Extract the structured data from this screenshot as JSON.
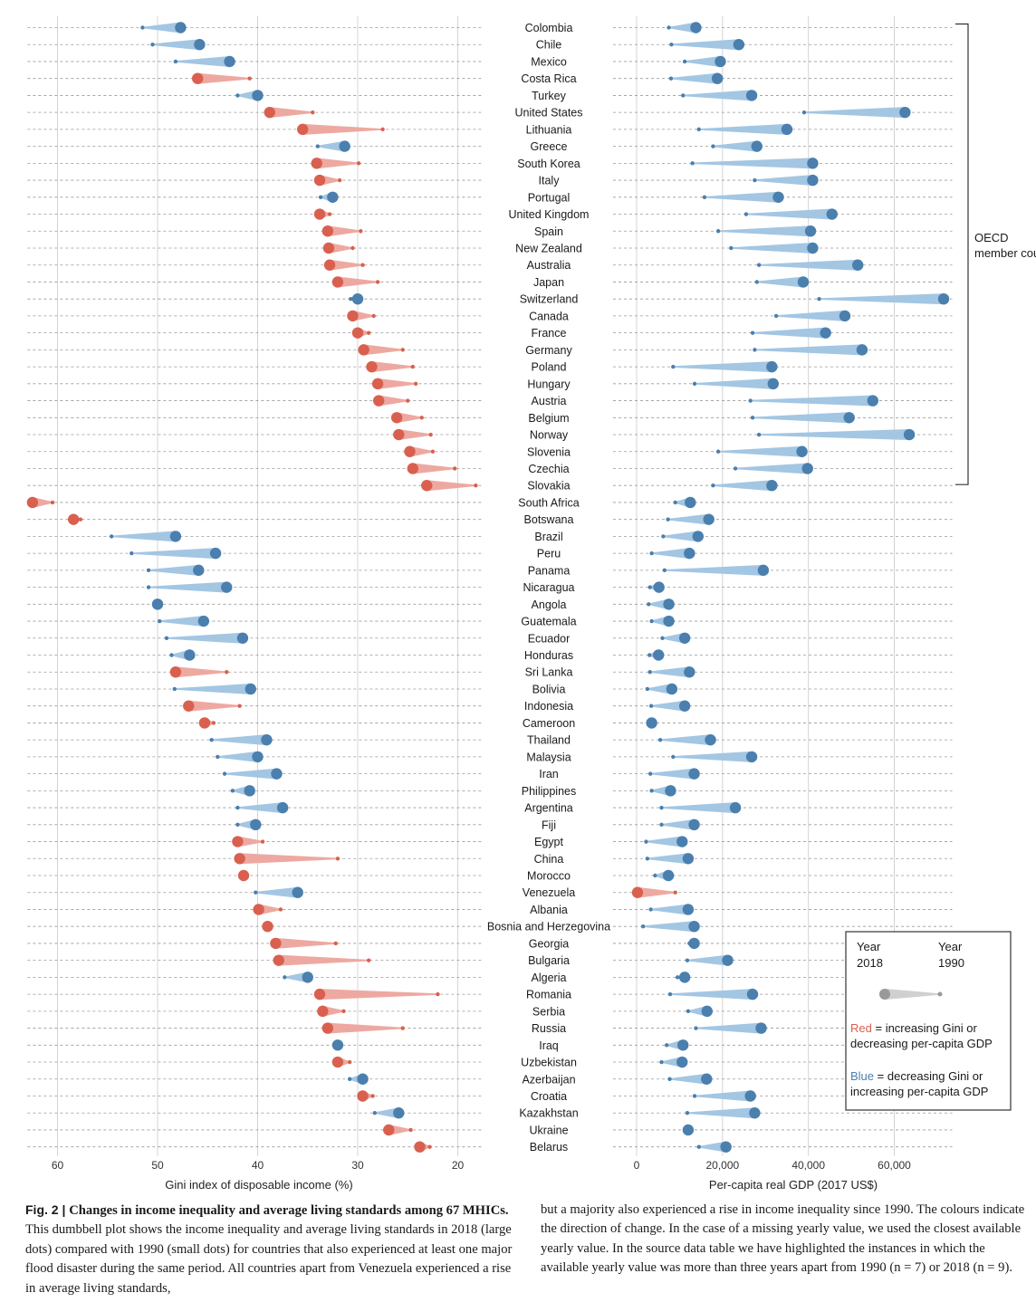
{
  "chart_data": {
    "type": "dumbbell",
    "caption": {
      "label": "Fig. 2 | ",
      "title": "Changes in income inequality and average living standards among 67 MHICs.",
      "text_col1": "This dumbbell plot shows the income inequality and average living standards in 2018 (large dots) compared with 1990 (small dots) for countries that also experienced at least one major flood disaster during the same period. All countries apart from Venezuela experienced a rise in average living standards,",
      "text_col2": "but a majority also experienced a rise in income inequality since 1990. The colours indicate the direction of change. In the case of a missing yearly value, we used the closest available yearly value. In the source data table we have highlighted the instances in which the available yearly value was more than three years apart from 1990 (n = 7) or 2018 (n = 9)."
    },
    "left_panel": {
      "xlabel": "Gini index of disposable income (%)",
      "xlim": [
        63,
        18
      ],
      "ticks": [
        60,
        50,
        40,
        30,
        20
      ]
    },
    "right_panel": {
      "xlabel": "Per-capita real GDP (2017 US$)",
      "xlim": [
        -5000,
        76000
      ],
      "ticks": [
        0,
        20000,
        40000,
        60000
      ],
      "tick_labels": [
        "0",
        "20,000",
        "40,000",
        "60,000"
      ]
    },
    "group_label": "OECD member countries",
    "group_range": [
      "Colombia",
      "Slovakia"
    ],
    "legend": {
      "year_2018": "Year 2018",
      "year_1990": "Year 1990",
      "red_word": "Red",
      "red_text": " = increasing Gini or decreasing per-capita GDP",
      "blue_word": "Blue",
      "blue_text": " = decreasing Gini or increasing per-capita GDP"
    },
    "colors": {
      "red": "#d9604f",
      "blue": "#4a7fae",
      "red_light": "#eda9a1",
      "blue_light": "#a3c6e3",
      "gray": "#999999"
    },
    "countries": [
      {
        "name": "Colombia",
        "gini_1990": 51.5,
        "gini_2018": 47.7,
        "gdp_1990": 7500,
        "gdp_2018": 13800
      },
      {
        "name": "Chile",
        "gini_1990": 50.5,
        "gini_2018": 45.8,
        "gdp_1990": 8100,
        "gdp_2018": 23800
      },
      {
        "name": "Mexico",
        "gini_1990": 48.2,
        "gini_2018": 42.8,
        "gdp_1990": 11200,
        "gdp_2018": 19500
      },
      {
        "name": "Costa Rica",
        "gini_1990": 40.8,
        "gini_2018": 46.0,
        "gdp_1990": 8000,
        "gdp_2018": 18800
      },
      {
        "name": "Turkey",
        "gini_1990": 42.0,
        "gini_2018": 40.0,
        "gdp_1990": 10800,
        "gdp_2018": 26800
      },
      {
        "name": "United States",
        "gini_1990": 34.5,
        "gini_2018": 38.8,
        "gdp_1990": 39000,
        "gdp_2018": 62500
      },
      {
        "name": "Lithuania",
        "gini_1990": 27.5,
        "gini_2018": 35.5,
        "gdp_1990": 14500,
        "gdp_2018": 35000
      },
      {
        "name": "Greece",
        "gini_1990": 34.0,
        "gini_2018": 31.3,
        "gdp_1990": 17800,
        "gdp_2018": 28000
      },
      {
        "name": "South Korea",
        "gini_1990": 29.9,
        "gini_2018": 34.1,
        "gdp_1990": 13000,
        "gdp_2018": 41000
      },
      {
        "name": "Italy",
        "gini_1990": 31.8,
        "gini_2018": 33.8,
        "gdp_1990": 27500,
        "gdp_2018": 41000
      },
      {
        "name": "Portugal",
        "gini_1990": 33.7,
        "gini_2018": 32.5,
        "gdp_1990": 15800,
        "gdp_2018": 33000
      },
      {
        "name": "United Kingdom",
        "gini_1990": 32.8,
        "gini_2018": 33.8,
        "gdp_1990": 25500,
        "gdp_2018": 45500
      },
      {
        "name": "Spain",
        "gini_1990": 29.7,
        "gini_2018": 33.0,
        "gdp_1990": 19000,
        "gdp_2018": 40500
      },
      {
        "name": "New Zealand",
        "gini_1990": 30.5,
        "gini_2018": 32.9,
        "gdp_1990": 22000,
        "gdp_2018": 41000
      },
      {
        "name": "Australia",
        "gini_1990": 29.5,
        "gini_2018": 32.8,
        "gdp_1990": 28500,
        "gdp_2018": 51500
      },
      {
        "name": "Japan",
        "gini_1990": 28.0,
        "gini_2018": 32.0,
        "gdp_1990": 28000,
        "gdp_2018": 38800
      },
      {
        "name": "Switzerland",
        "gini_1990": 30.7,
        "gini_2018": 30.0,
        "gdp_1990": 42500,
        "gdp_2018": 71500
      },
      {
        "name": "Canada",
        "gini_1990": 28.4,
        "gini_2018": 30.5,
        "gdp_1990": 32500,
        "gdp_2018": 48500
      },
      {
        "name": "France",
        "gini_1990": 28.9,
        "gini_2018": 30.0,
        "gdp_1990": 27000,
        "gdp_2018": 44000
      },
      {
        "name": "Germany",
        "gini_1990": 25.5,
        "gini_2018": 29.4,
        "gdp_1990": 27500,
        "gdp_2018": 52500
      },
      {
        "name": "Poland",
        "gini_1990": 24.5,
        "gini_2018": 28.6,
        "gdp_1990": 8500,
        "gdp_2018": 31500
      },
      {
        "name": "Hungary",
        "gini_1990": 24.2,
        "gini_2018": 28.0,
        "gdp_1990": 13500,
        "gdp_2018": 31800
      },
      {
        "name": "Austria",
        "gini_1990": 25.0,
        "gini_2018": 27.9,
        "gdp_1990": 26500,
        "gdp_2018": 55000
      },
      {
        "name": "Belgium",
        "gini_1990": 23.6,
        "gini_2018": 26.1,
        "gdp_1990": 27000,
        "gdp_2018": 49500
      },
      {
        "name": "Norway",
        "gini_1990": 22.7,
        "gini_2018": 25.9,
        "gdp_1990": 28500,
        "gdp_2018": 63500
      },
      {
        "name": "Slovenia",
        "gini_1990": 22.5,
        "gini_2018": 24.8,
        "gdp_1990": 19000,
        "gdp_2018": 38500
      },
      {
        "name": "Czechia",
        "gini_1990": 20.3,
        "gini_2018": 24.5,
        "gdp_1990": 23000,
        "gdp_2018": 39800
      },
      {
        "name": "Slovakia",
        "gini_1990": 18.2,
        "gini_2018": 23.1,
        "gdp_1990": 17800,
        "gdp_2018": 31500
      },
      {
        "name": "South Africa",
        "gini_1990": 60.5,
        "gini_2018": 62.5,
        "gdp_1990": 9000,
        "gdp_2018": 12500
      },
      {
        "name": "Botswana",
        "gini_1990": 57.7,
        "gini_2018": 58.4,
        "gdp_1990": 7300,
        "gdp_2018": 16800
      },
      {
        "name": "Brazil",
        "gini_1990": 54.6,
        "gini_2018": 48.2,
        "gdp_1990": 6200,
        "gdp_2018": 14300
      },
      {
        "name": "Peru",
        "gini_1990": 52.6,
        "gini_2018": 44.2,
        "gdp_1990": 3500,
        "gdp_2018": 12300
      },
      {
        "name": "Panama",
        "gini_1990": 50.9,
        "gini_2018": 45.9,
        "gdp_1990": 6500,
        "gdp_2018": 29500
      },
      {
        "name": "Nicaragua",
        "gini_1990": 50.9,
        "gini_2018": 43.1,
        "gdp_1990": 3100,
        "gdp_2018": 5200
      },
      {
        "name": "Angola",
        "gini_1990": 50.2,
        "gini_2018": 50.0,
        "gdp_1990": 2800,
        "gdp_2018": 7500
      },
      {
        "name": "Guatemala",
        "gini_1990": 49.8,
        "gini_2018": 45.4,
        "gdp_1990": 3500,
        "gdp_2018": 7500
      },
      {
        "name": "Ecuador",
        "gini_1990": 49.1,
        "gini_2018": 41.5,
        "gdp_1990": 6000,
        "gdp_2018": 11200
      },
      {
        "name": "Honduras",
        "gini_1990": 48.6,
        "gini_2018": 46.8,
        "gdp_1990": 3000,
        "gdp_2018": 5100
      },
      {
        "name": "Sri Lanka",
        "gini_1990": 43.1,
        "gini_2018": 48.2,
        "gdp_1990": 3100,
        "gdp_2018": 12300
      },
      {
        "name": "Bolivia",
        "gini_1990": 48.3,
        "gini_2018": 40.7,
        "gdp_1990": 2500,
        "gdp_2018": 8200
      },
      {
        "name": "Indonesia",
        "gini_1990": 41.8,
        "gini_2018": 46.9,
        "gdp_1990": 3400,
        "gdp_2018": 11200
      },
      {
        "name": "Cameroon",
        "gini_1990": 44.4,
        "gini_2018": 45.3,
        "gdp_1990": 3200,
        "gdp_2018": 3500
      },
      {
        "name": "Thailand",
        "gini_1990": 44.6,
        "gini_2018": 39.1,
        "gdp_1990": 5500,
        "gdp_2018": 17200
      },
      {
        "name": "Malaysia",
        "gini_1990": 44.0,
        "gini_2018": 40.0,
        "gdp_1990": 8500,
        "gdp_2018": 26800
      },
      {
        "name": "Iran",
        "gini_1990": 43.3,
        "gini_2018": 38.1,
        "gdp_1990": 3200,
        "gdp_2018": 13400
      },
      {
        "name": "Philippines",
        "gini_1990": 42.5,
        "gini_2018": 40.8,
        "gdp_1990": 3500,
        "gdp_2018": 7900
      },
      {
        "name": "Argentina",
        "gini_1990": 42.0,
        "gini_2018": 37.5,
        "gdp_1990": 5800,
        "gdp_2018": 23000
      },
      {
        "name": "Fiji",
        "gini_1990": 42.0,
        "gini_2018": 40.2,
        "gdp_1990": 5800,
        "gdp_2018": 13400
      },
      {
        "name": "Egypt",
        "gini_1990": 39.5,
        "gini_2018": 42.0,
        "gdp_1990": 2200,
        "gdp_2018": 10600
      },
      {
        "name": "China",
        "gini_1990": 32.0,
        "gini_2018": 41.8,
        "gdp_1990": 2500,
        "gdp_2018": 12000
      },
      {
        "name": "Morocco",
        "gini_1990": 41.2,
        "gini_2018": 41.4,
        "gdp_1990": 4300,
        "gdp_2018": 7400
      },
      {
        "name": "Venezuela",
        "gini_1990": 40.2,
        "gini_2018": 36.0,
        "gdp_1990": 9000,
        "gdp_2018": 200
      },
      {
        "name": "Albania",
        "gini_1990": 37.7,
        "gini_2018": 39.9,
        "gdp_1990": 3300,
        "gdp_2018": 12000
      },
      {
        "name": "Bosnia and Herzegovina",
        "gini_1990": 38.7,
        "gini_2018": 39.0,
        "gdp_1990": 1500,
        "gdp_2018": 13400
      },
      {
        "name": "Georgia",
        "gini_1990": 32.2,
        "gini_2018": 38.2,
        "gdp_1990": 12300,
        "gdp_2018": 13400
      },
      {
        "name": "Bulgaria",
        "gini_1990": 28.9,
        "gini_2018": 37.9,
        "gdp_1990": 11800,
        "gdp_2018": 21200
      },
      {
        "name": "Algeria",
        "gini_1990": 37.3,
        "gini_2018": 35.0,
        "gdp_1990": 9500,
        "gdp_2018": 11200
      },
      {
        "name": "Romania",
        "gini_1990": 22.0,
        "gini_2018": 33.8,
        "gdp_1990": 7800,
        "gdp_2018": 27000
      },
      {
        "name": "Serbia",
        "gini_1990": 31.4,
        "gini_2018": 33.5,
        "gdp_1990": 12000,
        "gdp_2018": 16400
      },
      {
        "name": "Russia",
        "gini_1990": 25.5,
        "gini_2018": 33.0,
        "gdp_1990": 13800,
        "gdp_2018": 29000
      },
      {
        "name": "Iraq",
        "gini_1990": 32.1,
        "gini_2018": 32.0,
        "gdp_1990": 7000,
        "gdp_2018": 10800
      },
      {
        "name": "Uzbekistan",
        "gini_1990": 30.8,
        "gini_2018": 32.0,
        "gdp_1990": 5800,
        "gdp_2018": 10600
      },
      {
        "name": "Azerbaijan",
        "gini_1990": 30.8,
        "gini_2018": 29.5,
        "gdp_1990": 7700,
        "gdp_2018": 16300
      },
      {
        "name": "Croatia",
        "gini_1990": 28.5,
        "gini_2018": 29.5,
        "gdp_1990": 13500,
        "gdp_2018": 26500
      },
      {
        "name": "Kazakhstan",
        "gini_1990": 28.3,
        "gini_2018": 25.9,
        "gdp_1990": 11800,
        "gdp_2018": 27500
      },
      {
        "name": "Ukraine",
        "gini_1990": 24.7,
        "gini_2018": 26.9,
        "gdp_1990": 11300,
        "gdp_2018": 12000
      },
      {
        "name": "Belarus",
        "gini_1990": 22.8,
        "gini_2018": 23.8,
        "gdp_1990": 14500,
        "gdp_2018": 20800
      }
    ]
  }
}
